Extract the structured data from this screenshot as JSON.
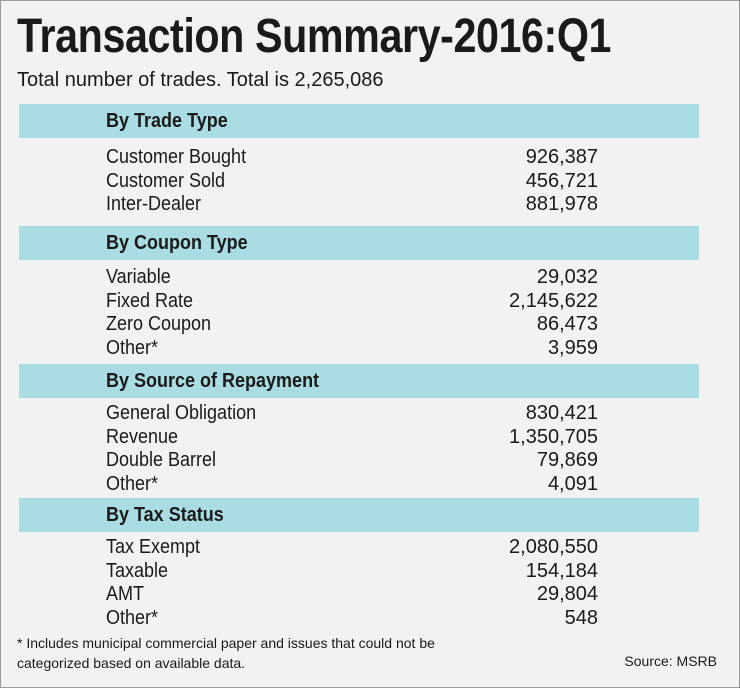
{
  "title": "Transaction Summary-2016:Q1",
  "subtitle": "Total number of trades. Total is 2,265,086",
  "sections": [
    {
      "heading": "By Trade Type",
      "rows": [
        {
          "label": "Customer Bought",
          "value": "926,387"
        },
        {
          "label": "Customer Sold",
          "value": "456,721"
        },
        {
          "label": "Inter-Dealer",
          "value": "881,978"
        }
      ]
    },
    {
      "heading": "By Coupon Type",
      "rows": [
        {
          "label": "Variable",
          "value": "29,032"
        },
        {
          "label": "Fixed Rate",
          "value": "2,145,622"
        },
        {
          "label": "Zero Coupon",
          "value": "86,473"
        },
        {
          "label": "Other*",
          "value": "3,959"
        }
      ]
    },
    {
      "heading": "By Source of Repayment",
      "rows": [
        {
          "label": "General Obligation",
          "value": "830,421"
        },
        {
          "label": "Revenue",
          "value": "1,350,705"
        },
        {
          "label": "Double Barrel",
          "value": "79,869"
        },
        {
          "label": "Other*",
          "value": "4,091"
        }
      ]
    },
    {
      "heading": "By Tax Status",
      "rows": [
        {
          "label": "Tax Exempt",
          "value": "2,080,550"
        },
        {
          "label": "Taxable",
          "value": "154,184"
        },
        {
          "label": "AMT",
          "value": "29,804"
        },
        {
          "label": "Other*",
          "value": "548"
        }
      ]
    }
  ],
  "footnote": "* Includes municipal commercial paper and issues that could not be categorized based on available data.",
  "source": "Source: MSRB",
  "colors": {
    "section_header_bg": "#a9dde3",
    "background": "#f2f2f2",
    "text": "#1a1a1a"
  }
}
